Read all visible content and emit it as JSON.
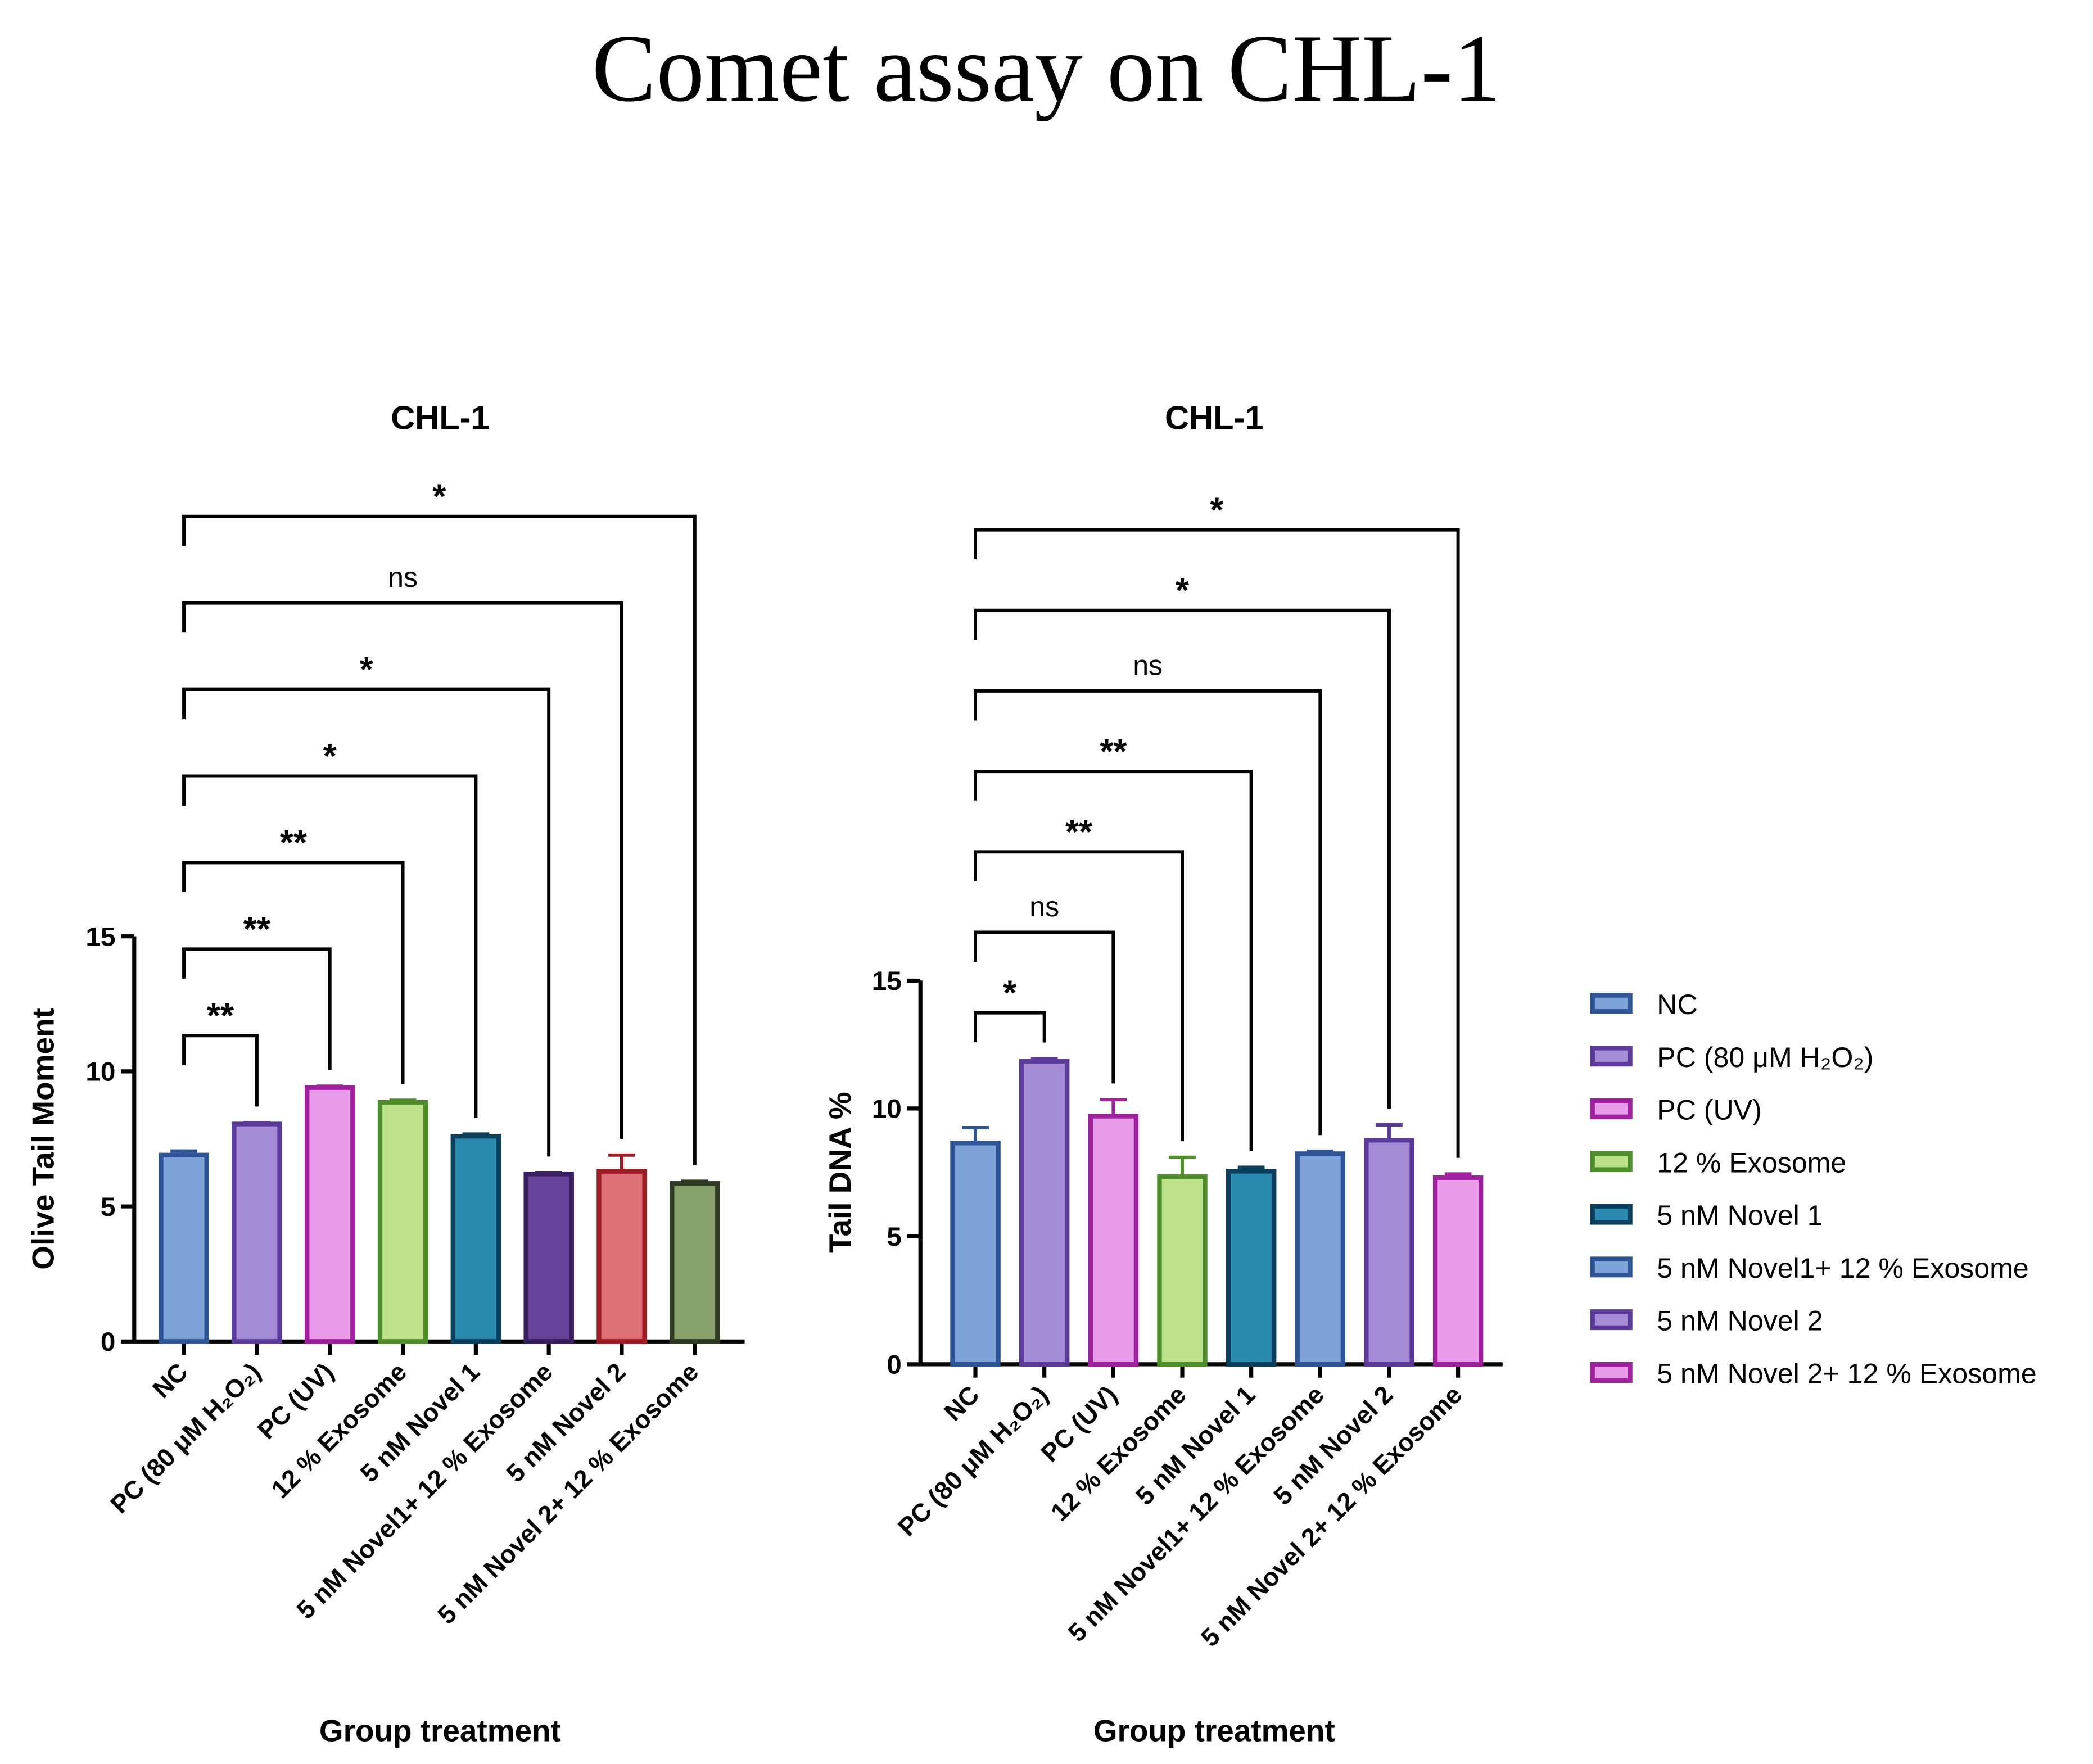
{
  "title": "Comet assay on CHL-1",
  "chart_data": [
    {
      "type": "bar",
      "title": "CHL-1",
      "y_label": "Olive Tail Moment",
      "x_label": "Group treatment",
      "categories": [
        "NC",
        "PC (80 μM H₂O₂)",
        "PC (UV)",
        "12 % Exosome",
        "5 nM Novel 1",
        "5 nM Novel1+ 12 % Exosome",
        "5 nM Novel 2",
        "5 nM Novel 2+ 12 % Exosome"
      ],
      "values": [
        6.9,
        8.05,
        9.4,
        8.85,
        7.6,
        6.2,
        6.3,
        5.85
      ],
      "errors": [
        0.15,
        0.05,
        0.05,
        0.08,
        0.08,
        0.05,
        0.6,
        0.08
      ],
      "colors": [
        "#7fa3d8",
        "#a48bd6",
        "#e89be8",
        "#bde08a",
        "#2b8ab0",
        "#67449a",
        "#e07078",
        "#88a06a"
      ],
      "edge_colors": [
        "#2e5597",
        "#5b3a9a",
        "#a020a0",
        "#4f8f2a",
        "#0b3f5e",
        "#3a1f60",
        "#a01c25",
        "#2f3a22"
      ],
      "significance": [
        null,
        "**",
        "**",
        "**",
        "*",
        "*",
        "ns",
        "*"
      ],
      "ylim": [
        0,
        15
      ],
      "yticks": [
        0,
        5,
        10,
        15
      ],
      "legend": false
    },
    {
      "type": "bar",
      "title": "CHL-1",
      "y_label": "Tail DNA %",
      "x_label": "Group treatment",
      "categories": [
        "NC",
        "PC (80 μM H₂O₂)",
        "PC (UV)",
        "12 % Exosome",
        "5 nM Novel 1",
        "5 nM Novel1+ 12 % Exosome",
        "5 nM Novel 2",
        "5 nM Novel 2+ 12 % Exosome"
      ],
      "values": [
        8.65,
        11.85,
        9.7,
        7.34,
        7.55,
        8.23,
        8.76,
        7.29
      ],
      "errors": [
        0.6,
        0.1,
        0.65,
        0.75,
        0.15,
        0.1,
        0.6,
        0.15
      ],
      "colors": [
        "#7fa3d8",
        "#a48bd6",
        "#e89be8",
        "#bde08a",
        "#2b8ab0",
        "#7fa3d8",
        "#a48bd6",
        "#e89be8"
      ],
      "edge_colors": [
        "#2e5597",
        "#5b3a9a",
        "#a020a0",
        "#4f8f2a",
        "#0b3f5e",
        "#2e5597",
        "#5b3a9a",
        "#a020a0"
      ],
      "significance": [
        null,
        "*",
        "ns",
        "**",
        "**",
        "ns",
        "*",
        "*"
      ],
      "ylim": [
        0,
        15
      ],
      "yticks": [
        0,
        5,
        10,
        15
      ],
      "legend": "right"
    }
  ]
}
